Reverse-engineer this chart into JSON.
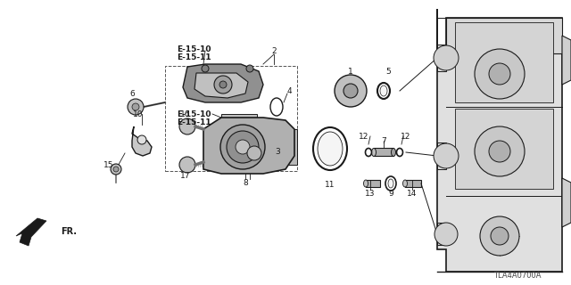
{
  "bg_color": "#ffffff",
  "line_color": "#1a1a1a",
  "diagram_code": "TLA4A0700A",
  "fr_label": "FR.",
  "upper_ref1": "E-15-10",
  "upper_ref2": "E-15-11",
  "lower_ref1": "E-15-10",
  "lower_ref2": "E-15-11"
}
